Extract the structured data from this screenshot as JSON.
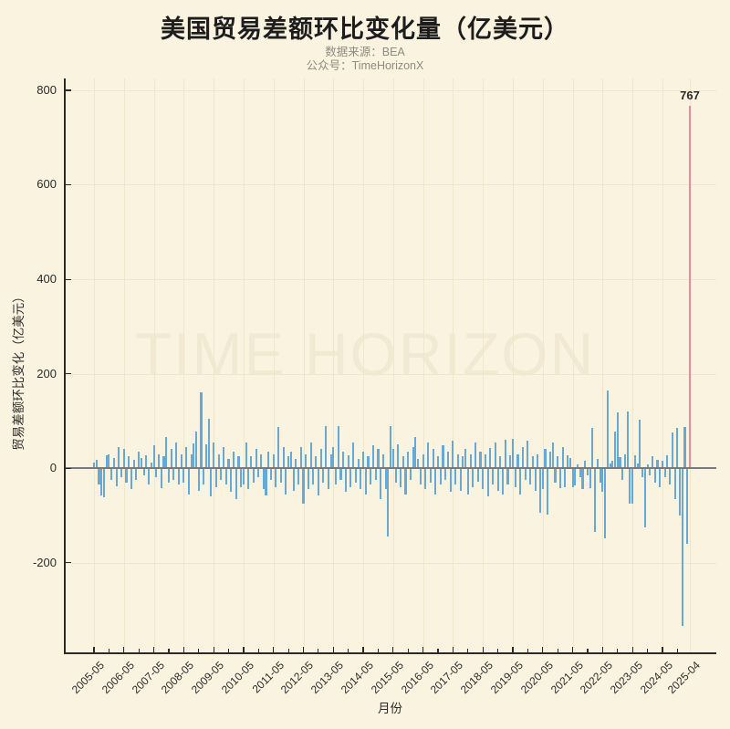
{
  "header": {
    "title": "美国贸易差额环比变化量（亿美元）",
    "source_line": "数据来源：BEA",
    "account_line": "公众号：TimeHorizonX"
  },
  "watermark": "TIME HORIZON",
  "colors": {
    "background": "#faf3df",
    "bar": "#66a8d6",
    "highlight_bar": "#e8899c",
    "grid": "#efe6cc",
    "axis": "#2b2b2b",
    "zero_line": "#7a7a7a",
    "title_text": "#1d1d1d",
    "subtitle_text": "#8f8b80",
    "watermark_text": "#f2e9d2"
  },
  "chart_data": {
    "type": "bar",
    "title": "美国贸易差额环比变化量（亿美元）",
    "xlabel": "月份",
    "ylabel": "贸易差额环比变化（亿美元）",
    "x_start": "2005-05",
    "x_end": "2025-04",
    "x_frequency": "monthly",
    "ylim": [
      -390,
      825
    ],
    "yticks": [
      800,
      600,
      400,
      200,
      0,
      -200
    ],
    "xticks": [
      {
        "label": "2005-05",
        "index": 0
      },
      {
        "label": "2006-05",
        "index": 12
      },
      {
        "label": "2007-05",
        "index": 24
      },
      {
        "label": "2008-05",
        "index": 36
      },
      {
        "label": "2009-05",
        "index": 48
      },
      {
        "label": "2010-05",
        "index": 60
      },
      {
        "label": "2011-05",
        "index": 72
      },
      {
        "label": "2012-05",
        "index": 84
      },
      {
        "label": "2013-05",
        "index": 96
      },
      {
        "label": "2014-05",
        "index": 108
      },
      {
        "label": "2015-05",
        "index": 120
      },
      {
        "label": "2016-05",
        "index": 132
      },
      {
        "label": "2017-05",
        "index": 144
      },
      {
        "label": "2018-05",
        "index": 156
      },
      {
        "label": "2019-05",
        "index": 168
      },
      {
        "label": "2020-05",
        "index": 180
      },
      {
        "label": "2021-05",
        "index": 192
      },
      {
        "label": "2022-05",
        "index": 204
      },
      {
        "label": "2023-05",
        "index": 216
      },
      {
        "label": "2024-05",
        "index": 228
      },
      {
        "label": "2025-04",
        "index": 239
      }
    ],
    "grid": true,
    "legend": "none",
    "highlight": {
      "index": 239,
      "label": "767",
      "value": 767
    },
    "values": [
      12,
      18,
      -35,
      -58,
      -62,
      28,
      30,
      -25,
      22,
      -38,
      45,
      -20,
      40,
      -30,
      25,
      -45,
      18,
      -25,
      35,
      22,
      -15,
      28,
      -35,
      12,
      48,
      -20,
      30,
      -42,
      25,
      65,
      -30,
      40,
      -25,
      55,
      -35,
      30,
      -30,
      45,
      -55,
      30,
      52,
      78,
      -48,
      160,
      -35,
      50,
      105,
      -60,
      55,
      -40,
      30,
      -25,
      45,
      -35,
      20,
      -50,
      35,
      -65,
      25,
      -40,
      -35,
      55,
      -45,
      25,
      -30,
      40,
      -20,
      30,
      -45,
      -58,
      35,
      -25,
      30,
      -40,
      88,
      -30,
      45,
      -55,
      25,
      35,
      -48,
      20,
      -35,
      45,
      -76,
      30,
      -45,
      55,
      -35,
      25,
      -58,
      40,
      -30,
      89,
      -45,
      30,
      45,
      -35,
      90,
      -25,
      35,
      -50,
      28,
      -40,
      55,
      -30,
      20,
      -45,
      35,
      -55,
      25,
      -35,
      48,
      -25,
      40,
      -65,
      30,
      -45,
      -145,
      90,
      40,
      -30,
      50,
      -40,
      25,
      -55,
      35,
      -25,
      45,
      66,
      20,
      -35,
      30,
      -45,
      55,
      -30,
      40,
      -55,
      25,
      -35,
      48,
      -25,
      35,
      -50,
      58,
      -35,
      30,
      -48,
      25,
      40,
      -55,
      30,
      -40,
      55,
      -28,
      35,
      -45,
      30,
      -60,
      42,
      -35,
      55,
      -48,
      25,
      -55,
      60,
      -35,
      28,
      62,
      -40,
      30,
      -55,
      45,
      -25,
      58,
      -35,
      25,
      -48,
      30,
      -95,
      -45,
      40,
      -98,
      35,
      55,
      -30,
      25,
      -42,
      45,
      -40,
      28,
      22,
      -40,
      -37,
      8,
      -20,
      -45,
      15,
      -15,
      -42,
      85,
      -135,
      20,
      -30,
      -50,
      -148,
      165,
      10,
      15,
      78,
      118,
      23,
      -25,
      30,
      120,
      -75,
      -75,
      28,
      10,
      103,
      -20,
      -125,
      8,
      -15,
      25,
      -30,
      18,
      -40,
      15,
      -20,
      28,
      -35,
      75,
      -65,
      85,
      -100,
      -334,
      88,
      -160,
      767
    ]
  }
}
